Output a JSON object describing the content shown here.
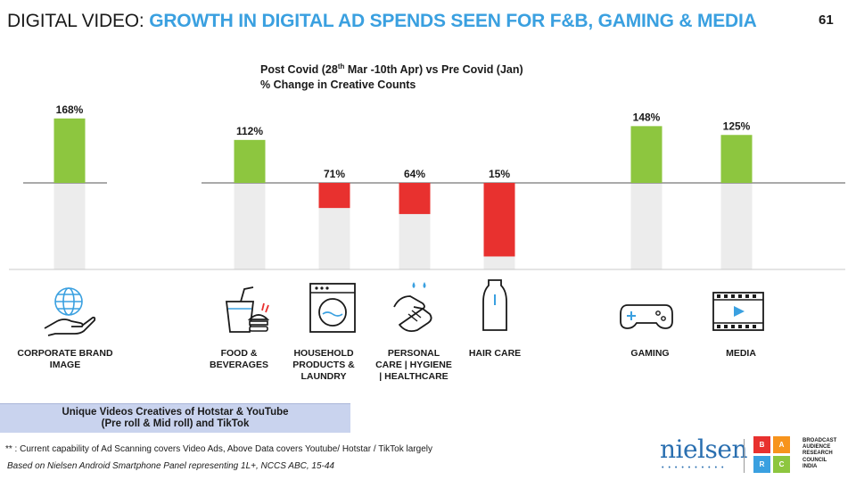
{
  "header": {
    "title_prefix": "DIGITAL VIDEO:",
    "title_highlight": "GROWTH IN DIGITAL AD SPENDS SEEN FOR F&B, GAMING & MEDIA",
    "page_number": "61"
  },
  "subtitle": {
    "line1_a": "Post Covid (28",
    "line1_sup": "th",
    "line1_b": " Mar -10th Apr) vs  Pre Covid (Jan)",
    "line2": "% Change in  Creative Counts"
  },
  "chart_data": {
    "type": "bar",
    "title": "Post Covid (28th Mar -10th Apr) vs  Pre Covid (Jan) % Change in  Creative Counts",
    "categories": [
      "CORPORATE BRAND IMAGE",
      "FOOD & BEVERAGES",
      "HOUSEHOLD PRODUCTS & LAUNDRY",
      "PERSONAL CARE | HYGIENE | HEALTHCARE",
      "HAIR CARE",
      "GAMING",
      "MEDIA"
    ],
    "values": [
      168,
      112,
      71,
      64,
      15,
      148,
      125
    ],
    "value_labels": [
      "168%",
      "112%",
      "71%",
      "64%",
      "15%",
      "148%",
      "125%"
    ],
    "direction": [
      "up",
      "up",
      "down",
      "down",
      "down",
      "up",
      "up"
    ],
    "ylim": [
      0,
      200
    ],
    "colors": {
      "up": "#8dc63f",
      "down": "#e8312f",
      "base": "#ececec",
      "axis": "#555555"
    }
  },
  "icons": [
    "globe-hand-icon",
    "drink-burger-fries-icon",
    "washing-machine-icon",
    "hand-wash-icon",
    "bottle-icon",
    "gamepad-icon",
    "film-strip-icon"
  ],
  "banner": {
    "line1": "Unique Videos Creatives of Hotstar & YouTube",
    "line2": "(Pre roll & Mid roll) and TikTok"
  },
  "footnote": "** : Current capability of Ad Scanning covers Video Ads, Above Data covers  Youtube/ Hotstar / TikTok largely",
  "source": "Based on Nielsen Android Smartphone Panel representing 1L+, NCCS ABC, 15-44",
  "logos": {
    "nielsen": "nielsen",
    "barc_letters": [
      "B",
      "A",
      "R",
      "C"
    ],
    "barc_colors": [
      "#e8312f",
      "#f7941d",
      "#3aa0e0",
      "#8dc63f"
    ],
    "barc_text": [
      "BROADCAST",
      "AUDIENCE",
      "RESEARCH",
      "COUNCIL",
      "INDIA"
    ]
  }
}
